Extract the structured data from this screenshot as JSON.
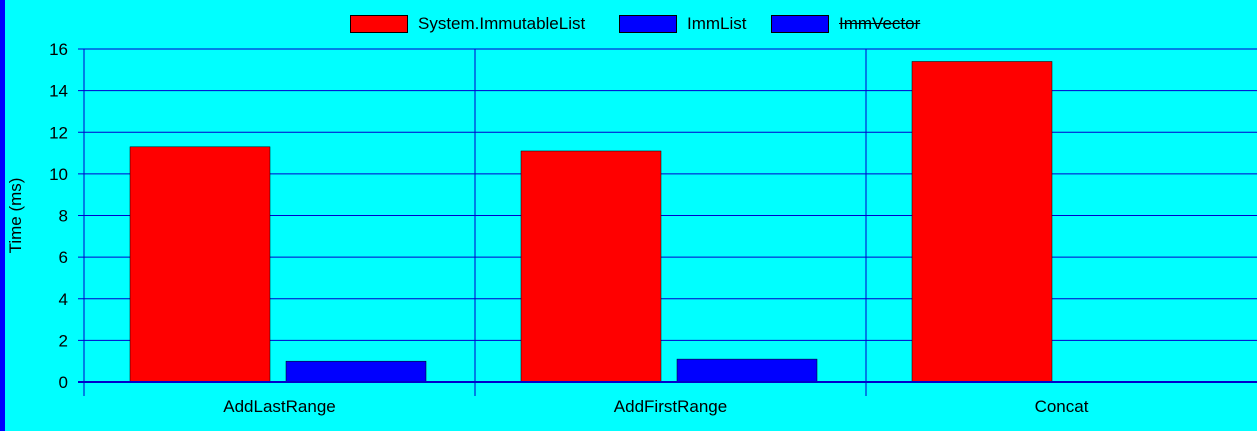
{
  "chart_data": {
    "type": "bar",
    "title": "",
    "xlabel": "",
    "ylabel": "Time (ms)",
    "ylim": [
      0,
      16
    ],
    "yticks": [
      "0",
      "2",
      "4",
      "6",
      "8",
      "10",
      "12",
      "14",
      "16"
    ],
    "categories": [
      "AddLastRange",
      "AddFirstRange",
      "Concat"
    ],
    "series": [
      {
        "name": "System.ImmutableList",
        "color": "#FF0000",
        "values": [
          11.3,
          11.1,
          15.4
        ],
        "hidden": false
      },
      {
        "name": "ImmList",
        "color": "#0000FF",
        "values": [
          1.0,
          1.1,
          null
        ],
        "hidden": false
      },
      {
        "name": "ImmVector",
        "color": "#0000FF",
        "values": [
          null,
          null,
          null
        ],
        "hidden": true
      }
    ],
    "grid": true,
    "legend_position": "top-center",
    "background_color": "#00FFFF",
    "grid_color": "#0000CC"
  }
}
